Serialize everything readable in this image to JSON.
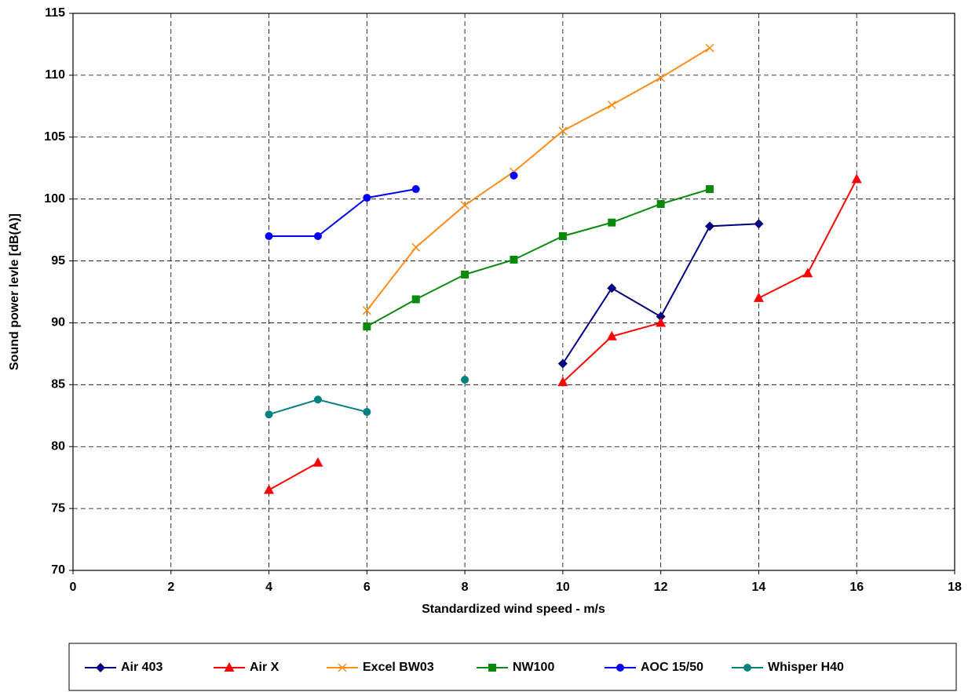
{
  "chart_data": {
    "type": "line",
    "x_label": "Standardized wind speed - m/s",
    "y_label": "Sound power levle [dB(A)]",
    "x": [
      4,
      5,
      6,
      7,
      8,
      9,
      10,
      11,
      12,
      13,
      14,
      15,
      16
    ],
    "series": [
      {
        "name": "Air 403",
        "color": "#000080",
        "marker": "diamond",
        "values": [
          null,
          null,
          null,
          null,
          null,
          null,
          86.7,
          92.8,
          90.5,
          97.8,
          98.0,
          null,
          null
        ]
      },
      {
        "name": "Air X",
        "color": "#ff0000",
        "marker": "triangle",
        "values": [
          76.5,
          78.7,
          null,
          null,
          null,
          null,
          85.2,
          88.9,
          90.0,
          null,
          92.0,
          94.0,
          101.6
        ]
      },
      {
        "name": "Excel BW03",
        "color": "#ff8c1a",
        "marker": "x",
        "values": [
          null,
          null,
          91.0,
          96.1,
          99.5,
          102.2,
          105.5,
          107.6,
          109.8,
          112.2,
          null,
          null,
          null
        ]
      },
      {
        "name": "NW100",
        "color": "#0a8a0a",
        "marker": "square",
        "values": [
          null,
          null,
          89.7,
          91.9,
          93.9,
          95.1,
          97.0,
          98.1,
          99.6,
          100.8,
          null,
          null,
          null
        ]
      },
      {
        "name": "AOC 15/50",
        "color": "#0000ff",
        "marker": "circle",
        "values": [
          97.0,
          97.0,
          100.1,
          100.8,
          null,
          101.9,
          null,
          null,
          null,
          null,
          null,
          null,
          null
        ]
      },
      {
        "name": "Whisper H40",
        "color": "#008080",
        "marker": "circle",
        "values": [
          82.6,
          83.8,
          82.8,
          null,
          85.4,
          null,
          null,
          null,
          null,
          null,
          null,
          null,
          null
        ]
      }
    ],
    "xlim": [
      0,
      18
    ],
    "xticks": [
      0,
      2,
      4,
      6,
      8,
      10,
      12,
      14,
      16,
      18
    ],
    "ylim": [
      70,
      115
    ],
    "yticks": [
      70,
      75,
      80,
      85,
      90,
      95,
      100,
      105,
      110,
      115
    ],
    "grid": true,
    "legend": "bottom"
  }
}
